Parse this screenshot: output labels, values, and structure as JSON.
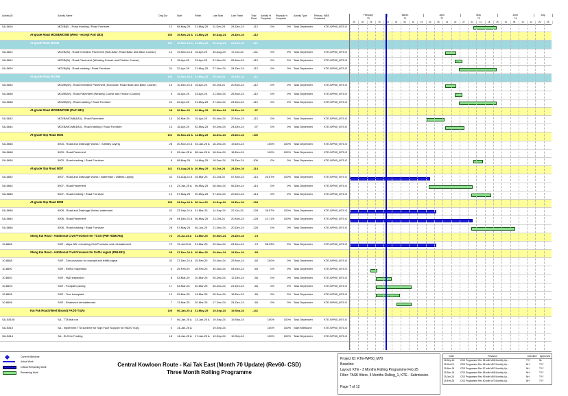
{
  "columns": [
    "Activity ID",
    "Activity Name",
    "Orig Dur",
    "Start",
    "Finish",
    "Late Start",
    "Late Finish",
    "Total Float",
    "Activity % Complete",
    "Physical % Complete",
    "Activity Type",
    "Primary Constraint",
    "WBS"
  ],
  "timeline": {
    "months": [
      "February",
      "March",
      "April",
      "May",
      "June",
      "July"
    ],
    "month_numbers": [
      "70",
      "71",
      "72",
      "73",
      "74"
    ],
    "weeks": [
      "26",
      "02",
      "09",
      "16",
      "23",
      "02",
      "09",
      "16",
      "23",
      "30",
      "06",
      "13",
      "20",
      "27",
      "04",
      "11",
      "18",
      "25",
      "01",
      "08",
      "15",
      "22",
      "29",
      "06"
    ]
  },
  "rows": [
    {
      "type": "act",
      "id": "SA-5616",
      "name": "MCEB(E) - Road marking / Road Furniture",
      "dur": "12",
      "start": "08-May-25",
      "finish": "21-May-25",
      "ls": "11-Dec-24",
      "lf": "24-Dec-24",
      "tf": "-112",
      "pc": "0%",
      "pp": "0%",
      "atype": "Task Dependent",
      "wbs": "KTE-WP60_M70.O",
      "bar": [
        0.61,
        0.72
      ]
    },
    {
      "type": "grpY",
      "name": "At-grade Road MCEB/MCWB (West - except Part 1B3)",
      "dur": "150",
      "start": "19-Nov-24 A",
      "finish": "21-May-25",
      "ls": "30-Aug-24",
      "lf": "24-Dec-24",
      "tf": "-112"
    },
    {
      "type": "grpC",
      "name": "At-grade Road MCEB",
      "dur": "150",
      "start": "19-Nov-24 A",
      "finish": "21-May-25",
      "ls": "30-Aug-24",
      "lf": "24-Dec-24",
      "tf": "-112"
    },
    {
      "type": "act",
      "id": "SA-5622",
      "name": "MCEB(W) - Road formation Pavement (Sub-base, Road Base and Base Course)",
      "dur": "14",
      "start": "19-Nov-24 A",
      "finish": "15-Apr-25",
      "ls": "30-Aug-24",
      "lf": "17-Oct-24",
      "tf": "-141",
      "pc": "0%",
      "pp": "0%",
      "atype": "Task Dependent",
      "wbs": "KTE-WP60_M70.O",
      "bar": [
        0.47,
        0.52
      ]
    },
    {
      "type": "act",
      "id": "SA-5624",
      "name": "MCEB(W) - Road Pavement (Wearing Course and Friction Course)",
      "dur": "5",
      "start": "16-Apr-25",
      "finish": "23-Apr-25",
      "ls": "21-Nov-24",
      "lf": "26-Nov-24",
      "tf": "-112",
      "pc": "0%",
      "pp": "0%",
      "atype": "Task Dependent",
      "wbs": "KTE-WP60_M70.O",
      "bar": [
        0.52,
        0.55
      ]
    },
    {
      "type": "act",
      "id": "SA-5626",
      "name": "MCEB(W) - Road marking / Road Furniture",
      "dur": "24",
      "start": "22-Apr-25",
      "finish": "21-May-25",
      "ls": "27-Nov-24",
      "lf": "24-Dec-24",
      "tf": "-112",
      "pc": "0%",
      "pp": "0%",
      "atype": "Task Dependent",
      "wbs": "KTE-WP60_M70.O",
      "bar": [
        0.54,
        0.72
      ]
    },
    {
      "type": "grpC",
      "name": "At-grade Road MCWB",
      "dur": "135",
      "start": "10-Dec-24 A",
      "finish": "21-May-25",
      "ls": "05-Oct-24",
      "lf": "24-Dec-24",
      "tf": "-112"
    },
    {
      "type": "act",
      "id": "SA-5634",
      "name": "MCWB(W) - Road formation Pavement (Sub-base, Road Base and Base Course)",
      "dur": "14",
      "start": "10-Dec-24 A",
      "finish": "15-Apr-25",
      "ls": "05-Oct-24",
      "lf": "20-Nov-24",
      "tf": "-112",
      "pc": "0%",
      "pp": "0%",
      "atype": "Task Dependent",
      "wbs": "KTE-WP60_M70.O",
      "bar": [
        0.47,
        0.52
      ]
    },
    {
      "type": "act",
      "id": "SA-5636",
      "name": "MCWB(W) - Road Pavement (Wearing Course and Friction Course)",
      "dur": "5",
      "start": "16-Apr-25",
      "finish": "23-Apr-25",
      "ls": "21-Nov-24",
      "lf": "26-Nov-24",
      "tf": "-112",
      "pc": "0%",
      "pp": "0%",
      "atype": "Task Dependent",
      "wbs": "KTE-WP60_M70.O",
      "bar": [
        0.52,
        0.55
      ]
    },
    {
      "type": "act",
      "id": "SA-5638",
      "name": "MCWB(W) - Road marking / Road Furniture",
      "dur": "24",
      "start": "22-Apr-25",
      "finish": "21-May-25",
      "ls": "27-Nov-24",
      "lf": "24-Dec-24",
      "tf": "-112",
      "pc": "0%",
      "pp": "0%",
      "atype": "Task Dependent",
      "wbs": "KTE-WP60_M70.O",
      "bar": [
        0.54,
        0.72
      ]
    },
    {
      "type": "grpY",
      "name": "At-grade Road MCEB/MCWB (Part 1B3)",
      "dur": "28",
      "start": "26-Mar-25",
      "finish": "02-May-25",
      "ls": "05-Nov-24",
      "lf": "24-Dec-24",
      "tf": "-97"
    },
    {
      "type": "act",
      "id": "SA-5642",
      "name": "MCEB/MCWB(1B3) - Road Pavement",
      "dur": "14",
      "start": "26-Mar-25",
      "finish": "15-Apr-25",
      "ls": "05-Nov-24",
      "lf": "20-Nov-24",
      "tf": "-112",
      "pc": "0%",
      "pp": "0%",
      "atype": "Task Dependent",
      "wbs": "KTE-WP60_M70.O",
      "bar": [
        0.38,
        0.46
      ]
    },
    {
      "type": "act",
      "id": "SA-5644",
      "name": "MCEB/MCWB(1B3) - Road marking / Road Furniture",
      "dur": "14",
      "start": "16-Apr-25",
      "finish": "02-May-25",
      "ls": "09-Dec-24",
      "lf": "24-Dec-24",
      "tf": "-97",
      "pc": "0%",
      "pp": "0%",
      "atype": "Task Dependent",
      "wbs": "KTE-WP60_M70.O",
      "bar": [
        0.47,
        0.56
      ]
    },
    {
      "type": "grpY",
      "name": "At-grade Slip Road 5003",
      "dur": "102",
      "start": "30-Nov-24 A",
      "finish": "14-May-25",
      "ls": "18-Dec-24",
      "lf": "24-Dec-24",
      "tf": "-106"
    },
    {
      "type": "act",
      "id": "SA-5646",
      "name": "5003 - Road and Drainage Works /  / Utilities Laying",
      "dur": "28",
      "start": "30-Nov-24 A",
      "finish": "03-Jan-25 A",
      "ls": "18-Dec-24",
      "lf": "19-Dec-24",
      "tf": "",
      "pc": "100%",
      "pp": "100%",
      "atype": "Task Dependent",
      "wbs": "KTE-WP60_M70.O",
      "bar": null
    },
    {
      "type": "act",
      "id": "SA-5648",
      "name": "5003 - Road Pavement",
      "dur": "9",
      "start": "03-Jan-25 A",
      "finish": "08-Jan-25 A",
      "ls": "18-Dec-24",
      "lf": "18-Dec-24",
      "tf": "",
      "pc": "100%",
      "pp": "100%",
      "atype": "Task Dependent",
      "wbs": "KTE-WP60_M70.O",
      "bar": null
    },
    {
      "type": "act",
      "id": "SA-5650",
      "name": "5003 - Road marking / Road Furniture",
      "dur": "6",
      "start": "08-May-25",
      "finish": "14-May-25",
      "ls": "18-Dec-24",
      "lf": "24-Dec-24",
      "tf": "-106",
      "pc": "0%",
      "pp": "0%",
      "atype": "Task Dependent",
      "wbs": "KTE-WP60_M70.O",
      "bar": [
        0.61,
        0.65
      ]
    },
    {
      "type": "grpY",
      "name": "At-grade Slip Road 5007",
      "dur": "141",
      "start": "01-Aug-24 A",
      "finish": "20-May-25",
      "ls": "03-Oct-24",
      "lf": "24-Dec-24",
      "tf": "-114"
    },
    {
      "type": "act",
      "id": "SA-5652",
      "name": "5007 - Road and Drainage Works / watermain / Utilities Laying",
      "dur": "42",
      "start": "01-Aug-24 A",
      "finish": "25-Mar-25",
      "ls": "03-Oct-24",
      "lf": "07-Nov-24",
      "tf": "-114",
      "pc": "26.57%",
      "pp": "100%",
      "atype": "Task Dependent",
      "wbs": "KTE-WP60_M70.O",
      "bar": [
        0.0,
        0.39
      ],
      "crit": true
    },
    {
      "type": "act",
      "id": "SA-5654",
      "name": "5007 - Road Pavement",
      "dur": "14",
      "start": "23-Jan-25 A",
      "finish": "06-May-25",
      "ls": "08-Nov-24",
      "lf": "06-Dec-24",
      "tf": "-114",
      "pc": "0%",
      "pp": "0%",
      "atype": "Task Dependent",
      "wbs": "KTE-WP60_M70.O",
      "bar": [
        0.39,
        0.6
      ]
    },
    {
      "type": "act",
      "id": "SA-5656",
      "name": "5007 - Road marking / Road Furniture",
      "dur": "12",
      "start": "07-May-25",
      "finish": "20-May-25",
      "ls": "07-Dec-24",
      "lf": "20-Dec-24",
      "tf": "-114",
      "pc": "0%",
      "pp": "0%",
      "atype": "Task Dependent",
      "wbs": "KTE-WP60_M70.O",
      "bar": [
        0.6,
        0.69
      ]
    },
    {
      "type": "grpY",
      "name": "At-grade Slip Road 5008",
      "dur": "155",
      "start": "23-Sep-24 A",
      "finish": "06-Jun-25",
      "ls": "14-Sep-24",
      "lf": "24-Dec-24",
      "tf": "-128"
    },
    {
      "type": "act",
      "id": "SA-5658",
      "name": "5008 - Road and Drainage Works/ watermain",
      "dur": "42",
      "start": "23-Sep-24 A",
      "finish": "31-Mar-25",
      "ls": "14-Sep-24",
      "lf": "22-Oct-24",
      "tf": "-128",
      "pc": "28.57%",
      "pp": "100%",
      "atype": "Task Dependent",
      "wbs": "KTE-WP60_M70.O",
      "bar": [
        0.0,
        0.42
      ],
      "crit": true
    },
    {
      "type": "act",
      "id": "SA-5664",
      "name": "5008 - Road Pavement",
      "dur": "28",
      "start": "04-Dec-24 A",
      "finish": "06-May-25",
      "ls": "23-Oct-24",
      "lf": "20-Nov-24",
      "tf": "-128",
      "pc": "10.71%",
      "pp": "100%",
      "atype": "Task Dependent",
      "wbs": "KTE-WP60_M70.O",
      "bar": [
        0.0,
        0.6
      ],
      "crit": true
    },
    {
      "type": "act",
      "id": "SA-5666",
      "name": "5008 - Road marking / Road Furniture",
      "dur": "26",
      "start": "07-May-25",
      "finish": "06-Jun-25",
      "ls": "21-Nov-24",
      "lf": "20-Dec-24",
      "tf": "-128",
      "pc": "0%",
      "pp": "0%",
      "atype": "Task Dependent",
      "wbs": "KTE-WP60_M70.O",
      "bar": [
        0.6,
        0.81
      ]
    },
    {
      "type": "grpY",
      "name": "Shing Kai Road - Additional Civil Provision for TCSS (PMI-783B/784)",
      "dur": "72",
      "start": "19-Jul-24 A",
      "finish": "31-Mar-25",
      "ls": "20-Nov-24",
      "lf": "24-Dec-24",
      "tf": "-74"
    },
    {
      "type": "act",
      "id": "10-8666",
      "name": "SKR - steps 5/6- remaining Civil Provision and reinstatement",
      "dur": "72",
      "start": "19-Jul-24 A",
      "finish": "31-Mar-25",
      "ls": "20-Nov-24",
      "lf": "24-Dec-24",
      "tf": "-74",
      "pc": "58.33%",
      "pp": "0%",
      "atype": "Task Dependent",
      "wbs": "KTE-WP60_M70.O",
      "bar": [
        0.0,
        0.42
      ],
      "crit": true
    },
    {
      "type": "grpY",
      "name": "Shing Kai Road - Additional Civil Provision for traffic signal (PMI-891)",
      "dur": "65",
      "start": "27-Dec-24 A",
      "finish": "20-Mar-25",
      "ls": "29-Nov-24",
      "lf": "24-Dec-24",
      "tf": "-65"
    },
    {
      "type": "act",
      "id": "10-8688",
      "name": "SKR - Civil provision for downpit and traffic signal",
      "dur": "32",
      "start": "27-Dec-24 A",
      "finish": "25-Feb-25",
      "ls": "29-Nov-24",
      "lf": "29-Nov-24",
      "tf": "-65",
      "pc": "100%",
      "pp": "0%",
      "atype": "Task Dependent",
      "wbs": "KTE-WP60_M70.O",
      "bar": null
    },
    {
      "type": "act",
      "id": "10-8690",
      "name": "SKR - EMSD inspection",
      "dur": "4",
      "start": "25-Feb-25",
      "finish": "28-Feb-25",
      "ls": "30-Nov-24",
      "lf": "04-Dec-24",
      "tf": "-65",
      "pc": "0%",
      "pp": "0%",
      "atype": "Task Dependent",
      "wbs": "KTE-WP60_M70.O",
      "bar": [
        0.1,
        0.13
      ]
    },
    {
      "type": "act",
      "id": "10-8692",
      "name": "SKR - HyD inspection",
      "dur": "8",
      "start": "03-Mar-25",
      "finish": "10-Mar-25",
      "ls": "05-Dec-24",
      "lf": "12-Dec-24",
      "tf": "-56",
      "pc": "0%",
      "pp": "0%",
      "atype": "Task Dependent",
      "wbs": "KTE-WP60_M70.O",
      "bar": [
        0.13,
        0.2
      ]
    },
    {
      "type": "act",
      "id": "10-8694",
      "name": "SKR - Footpath paving",
      "dur": "17",
      "start": "03-Mar-25",
      "finish": "20-Mar-25",
      "ls": "05-Dec-24",
      "lf": "21-Dec-24",
      "tf": "-65",
      "pc": "0%",
      "pp": "0%",
      "atype": "Task Dependent",
      "wbs": "KTE-WP60_M70.O",
      "bar": [
        0.13,
        0.3
      ]
    },
    {
      "type": "act",
      "id": "10-8696",
      "name": "SKR - Tree transplant",
      "dur": "12",
      "start": "03-Mar-25",
      "finish": "14-Mar-25",
      "ls": "05-Dec-24",
      "lf": "16-Dec-24",
      "tf": "-65",
      "pc": "0%",
      "pp": "0%",
      "atype": "Task Dependent",
      "wbs": "KTE-WP60_M70.O",
      "bar": [
        0.13,
        0.24
      ]
    },
    {
      "type": "act",
      "id": "10-8698",
      "name": "SKR - Roadwork reinstatement",
      "dur": "7",
      "start": "13-Mar-25",
      "finish": "20-Mar-25",
      "ls": "17-Dec-24",
      "lf": "24-Dec-24",
      "tf": "-65",
      "pc": "0%",
      "pp": "0%",
      "atype": "Task Dependent",
      "wbs": "KTE-WP60_M70.O",
      "bar": [
        0.23,
        0.3
      ]
    },
    {
      "type": "grpY",
      "name": "Kai Fuk Road (West Bound) FADS-T4(A)",
      "dur": "105",
      "start": "06-Jan-25 A",
      "finish": "21-May-25",
      "ls": "19-Sep-24",
      "lf": "19-Sep-24",
      "tf": "-141"
    },
    {
      "type": "act",
      "id": "SA-S8108",
      "name": "SA - TTA trial run",
      "dur": "7",
      "start": "06-Jan-25 A",
      "finish": "13-Jan-25 A",
      "ls": "19-Sep-24",
      "lf": "19-Sep-24",
      "tf": "",
      "pc": "100%",
      "pp": "100%",
      "atype": "Task Dependent",
      "wbs": "KTE-WP60_M70.O",
      "bar": null
    },
    {
      "type": "act",
      "id": "SA-S810",
      "name": "SA - Implement TTA scheme for Sign Face Support for FADS T4(A)",
      "dur": "0",
      "start": "14-Jan-25 A",
      "finish": "",
      "ls": "19-Sep-24",
      "lf": "",
      "tf": "",
      "pc": "100%",
      "pp": "100%",
      "atype": "Start Milestone",
      "wbs": "KTE-WP60_M70.O",
      "bar": null
    },
    {
      "type": "act",
      "id": "SA-S814",
      "name": "SA - ELS for Footing",
      "dur": "18",
      "start": "14-Jan-25 A",
      "finish": "17-Jan-25 A",
      "ls": "19-Sep-24",
      "lf": "19-Sep-24",
      "tf": "",
      "pc": "100%",
      "pp": "100%",
      "atype": "Task Dependent",
      "wbs": "KTE-WP60_M70.O",
      "bar": null
    }
  ],
  "legend": {
    "items": [
      "Current Milestone",
      "Actual Work",
      "Critical Remaining Work",
      "Remaining Work"
    ],
    "colors": {
      "actual": "#1d1dd8",
      "critical": "#1d1dd8",
      "remaining": "#88e08a",
      "milestone": "#1d1dd8"
    }
  },
  "title": {
    "line1": "Central Kowloon Route - Kai Tak East (Month 70 Update) (Rev60- CSD)",
    "line2": "Three Month Rolling Programme"
  },
  "project": {
    "id": "Project ID: KTE-WP60_M70",
    "baseline": "Baseline:",
    "layout": "Layout: KTE - 3 Months Rolling Programme Feb 25",
    "filter": "Filter: TASK filters, 3 Months Rolling_1, KTE - Submission.",
    "page": "Page 7 of 12"
  },
  "revisions": {
    "headers": [
      "Date",
      "Revision",
      "Checked",
      "Approved"
    ],
    "rows": [
      [
        "26-Sep-24",
        "CSD Programme Rev 56 with M66 Monthly Up...",
        "TYY",
        "NL"
      ],
      [
        "25-Oct-24",
        "CSD Programme Rev 56 with M67 Monthly Up...",
        "NH",
        "TYY"
      ],
      [
        "25-Nov-24",
        "CSD Programme Rev 57 with M67 Monthly Up...",
        "NH",
        "TYY"
      ],
      [
        "25-Dec-24",
        "CSD Programme Rev 58 with M68 Monthly Up...",
        "NH",
        "TYY"
      ],
      [
        "25-Jan-25",
        "CSD Programme Rev 59 with M69 Monthly Up...",
        "NH",
        "TYY"
      ],
      [
        "25-Feb-25",
        "CSD Programme Rev 60 with M70 Monthly Up...",
        "NH",
        "TYY"
      ]
    ]
  }
}
